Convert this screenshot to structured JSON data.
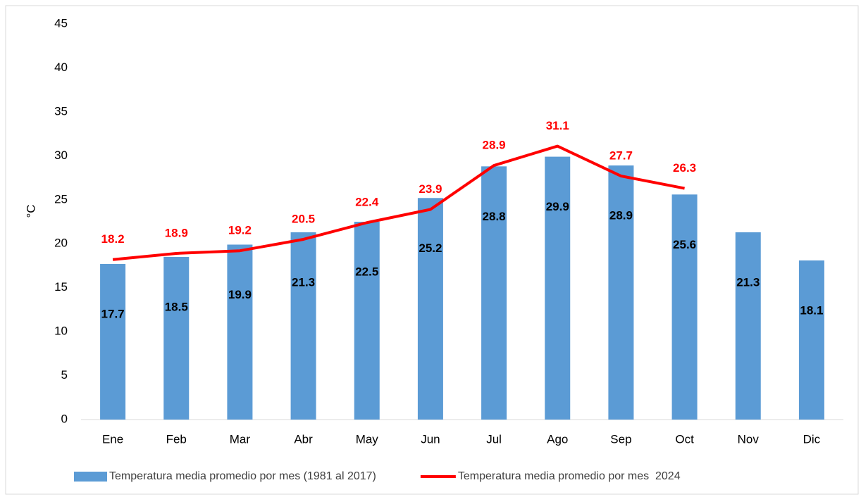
{
  "chart_data": {
    "type": "bar",
    "y_label": "°C",
    "categories": [
      "Ene",
      "Feb",
      "Mar",
      "Abr",
      "May",
      "Jun",
      "Jul",
      "Ago",
      "Sep",
      "Oct",
      "Nov",
      "Dic"
    ],
    "series": [
      {
        "name": "Temperatura media promedio por mes (1981 al 2017)",
        "type": "bar",
        "color": "#5b9bd5",
        "values": [
          17.7,
          18.5,
          19.9,
          21.3,
          22.5,
          25.2,
          28.8,
          29.9,
          28.9,
          25.6,
          21.3,
          18.1
        ]
      },
      {
        "name": "Temperatura media promedio por mes  2024",
        "type": "line",
        "color": "#ff0000",
        "values": [
          18.2,
          18.9,
          19.2,
          20.5,
          22.4,
          23.9,
          28.9,
          31.1,
          27.7,
          26.3,
          null,
          null
        ]
      }
    ],
    "ylim": [
      0,
      45
    ],
    "yticks": [
      0,
      5,
      10,
      15,
      20,
      25,
      30,
      35,
      40,
      45
    ],
    "grid": false,
    "legend": "bottom"
  }
}
